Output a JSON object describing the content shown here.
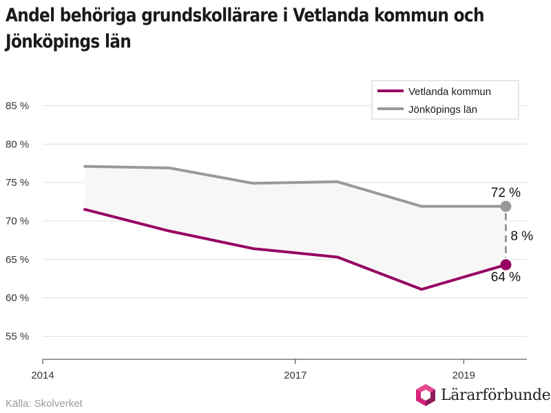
{
  "title": "Andel behöriga grundskollärare i Vetlanda kommun och Jönköpings län",
  "source": "Källa: Skolverket",
  "brand": {
    "name": "Lärarförbundet",
    "icon": "lararforbundet-logo-icon"
  },
  "colors": {
    "vetlanda": "#960062",
    "jonkoping": "#999999",
    "grid": "#dddddd",
    "fill": "#f7f7f7"
  },
  "chart_data": {
    "type": "line",
    "title": "Andel behöriga grundskollärare i Vetlanda kommun och Jönköpings län",
    "xlabel": "",
    "ylabel": "",
    "x": [
      2014.5,
      2015.5,
      2016.5,
      2017.5,
      2018.5,
      2019.5
    ],
    "series": [
      {
        "name": "Vetlanda kommun",
        "color": "#960062",
        "values": [
          71.5,
          68.7,
          66.4,
          65.3,
          61.1,
          64.3
        ]
      },
      {
        "name": "Jönköpings län",
        "color": "#999999",
        "values": [
          77.1,
          76.9,
          74.9,
          75.1,
          71.9,
          71.9
        ]
      }
    ],
    "xlim": [
      2014,
      2019.75
    ],
    "ylim": [
      52,
      88
    ],
    "x_ticks": [
      2014,
      2017,
      2019
    ],
    "x_tick_labels": [
      "2014",
      "2017",
      "2019"
    ],
    "y_ticks": [
      55,
      60,
      65,
      70,
      75,
      80,
      85
    ],
    "y_tick_labels": [
      "55 %",
      "60 %",
      "65 %",
      "70 %",
      "75 %",
      "80 %",
      "85 %"
    ],
    "grid": "horizontal",
    "legend": "top-right",
    "annotations": {
      "jonkoping_last": "72 %",
      "vetlanda_last": "64 %",
      "difference": "8 %"
    }
  }
}
